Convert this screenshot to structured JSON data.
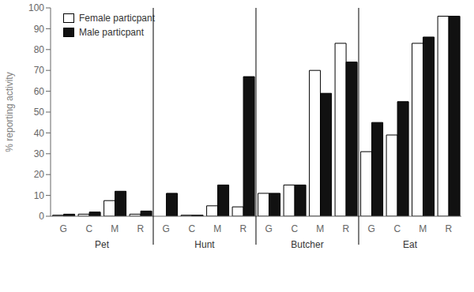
{
  "chart_data": {
    "type": "bar",
    "ylabel": "% reporting activity",
    "categories": [
      "G",
      "C",
      "M",
      "R",
      "G",
      "C",
      "M",
      "R",
      "G",
      "C",
      "M",
      "R",
      "G",
      "C",
      "M",
      "R"
    ],
    "groups": [
      "Pet",
      "Hunt",
      "Butcher",
      "Eat"
    ],
    "series": [
      {
        "name": "Female particpant",
        "color": "#ffffff",
        "values": [
          0.5,
          1.0,
          7.5,
          1.0,
          0.0,
          0.5,
          5.0,
          4.5,
          11.0,
          15.0,
          70.0,
          83.0,
          31.0,
          39.0,
          83.0,
          96.0
        ]
      },
      {
        "name": "Male particpant",
        "color": "#111111",
        "values": [
          1.0,
          2.0,
          12.0,
          2.5,
          11.0,
          0.5,
          15.0,
          67.0,
          11.0,
          15.0,
          59.0,
          74.0,
          45.0,
          55.0,
          86.0,
          96.0
        ]
      }
    ],
    "ylim": [
      0,
      100
    ],
    "yticks": [
      0,
      10,
      20,
      30,
      40,
      50,
      60,
      70,
      80,
      90,
      100
    ],
    "grid": false,
    "legend": "upper left"
  }
}
